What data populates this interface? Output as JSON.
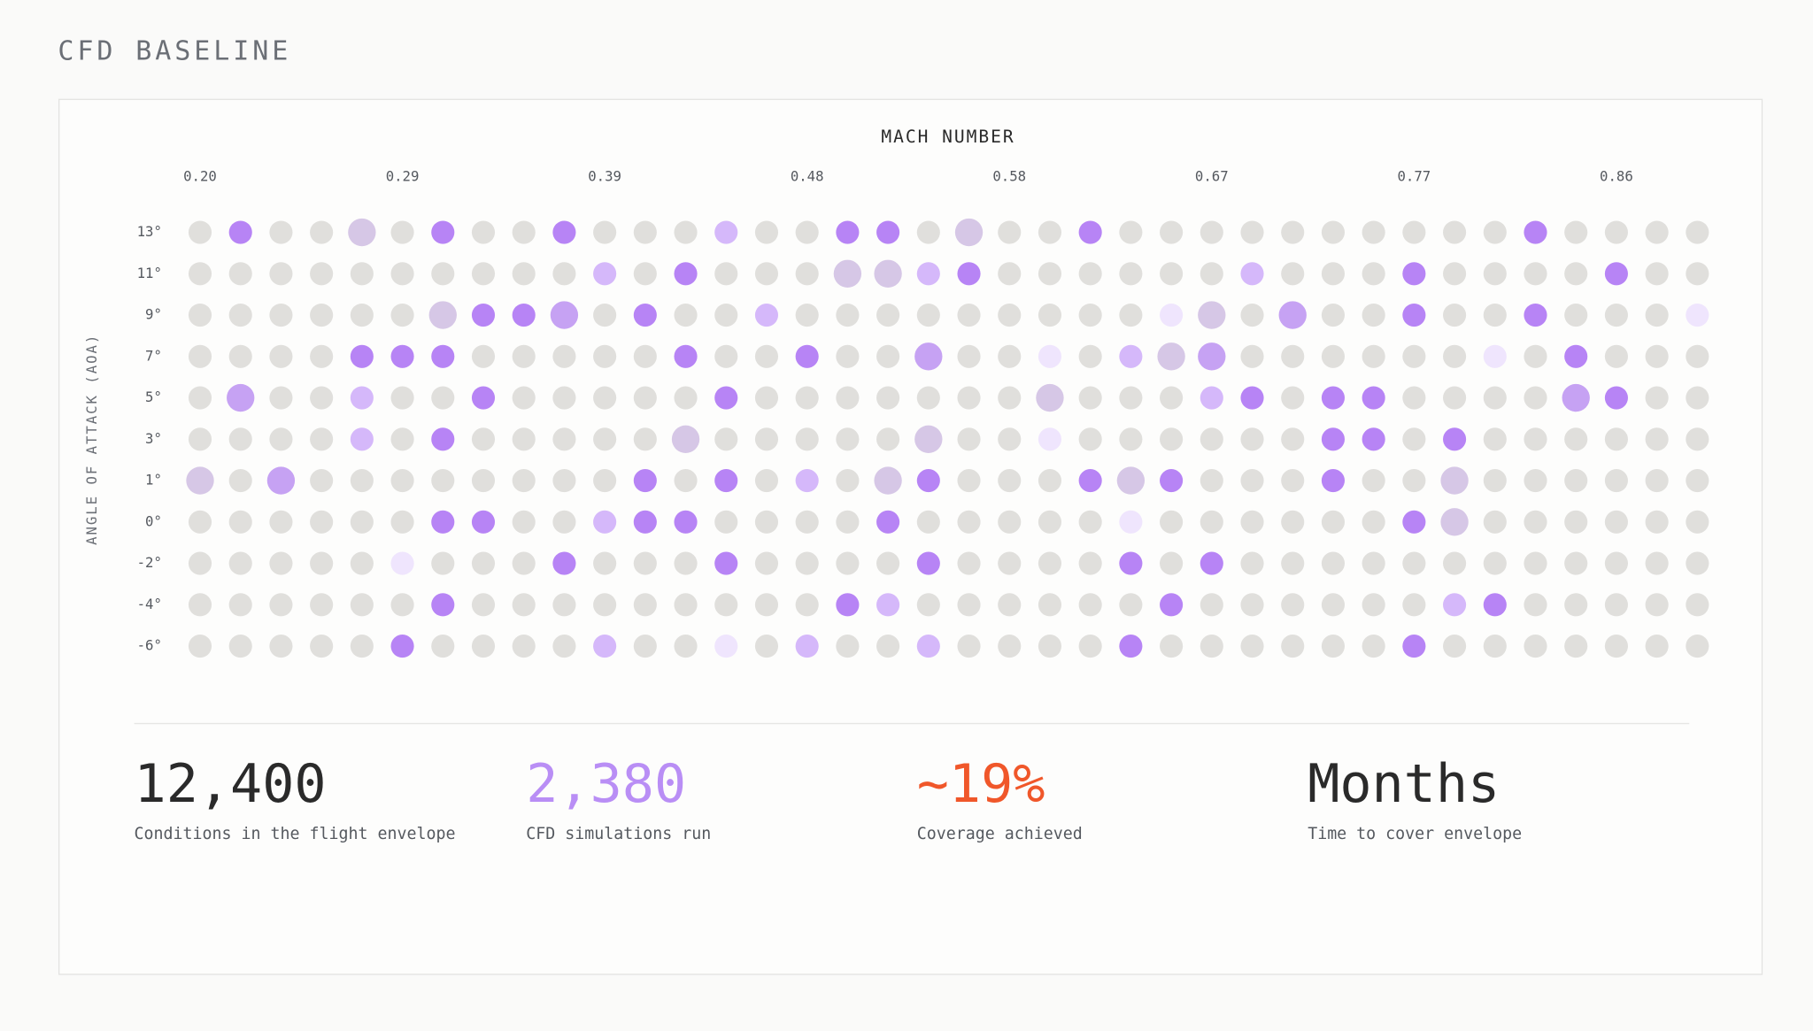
{
  "header": {
    "title": "CFD BASELINE"
  },
  "grid": {
    "x_title": "MACH NUMBER",
    "y_title": "ANGLE OF ATTACK (AOA)",
    "x_labels": [
      "0.20",
      null,
      null,
      null,
      null,
      "0.29",
      null,
      null,
      null,
      null,
      "0.39",
      null,
      null,
      null,
      null,
      "0.48",
      null,
      null,
      null,
      null,
      "0.58",
      null,
      null,
      null,
      null,
      "0.67",
      null,
      null,
      null,
      null,
      "0.77",
      null,
      null,
      null,
      null,
      "0.86",
      null,
      null
    ],
    "y_labels": [
      "13°",
      "11°",
      "9°",
      "7°",
      "5°",
      "3°",
      "1°",
      "0°",
      "-2°",
      "-4°",
      "-6°"
    ],
    "states": [
      {
        "color": "#e0dfdc",
        "r": 10
      },
      {
        "color": "#b784f5",
        "r": 10
      },
      {
        "color": "#d5b8fa",
        "r": 10
      },
      {
        "color": "#efe5fd",
        "r": 10
      },
      {
        "color": "#d6c7e6",
        "r": 12
      },
      {
        "color": "#c6a2f3",
        "r": 12
      }
    ],
    "rows": [
      [
        0,
        1,
        0,
        0,
        4,
        0,
        1,
        0,
        0,
        1,
        0,
        0,
        0,
        2,
        0,
        0,
        1,
        1,
        0,
        4,
        0,
        0,
        1,
        0,
        0,
        0,
        0,
        0,
        0,
        0,
        0,
        0,
        0,
        1,
        0,
        0,
        0,
        0
      ],
      [
        0,
        0,
        0,
        0,
        0,
        0,
        0,
        0,
        0,
        0,
        2,
        0,
        1,
        0,
        0,
        0,
        4,
        4,
        2,
        1,
        0,
        0,
        0,
        0,
        0,
        0,
        2,
        0,
        0,
        0,
        1,
        0,
        0,
        0,
        0,
        1,
        0,
        0
      ],
      [
        0,
        0,
        0,
        0,
        0,
        0,
        4,
        1,
        1,
        5,
        0,
        1,
        0,
        0,
        2,
        0,
        0,
        0,
        0,
        0,
        0,
        0,
        0,
        0,
        3,
        4,
        0,
        5,
        0,
        0,
        1,
        0,
        0,
        1,
        0,
        0,
        0,
        3
      ],
      [
        0,
        0,
        0,
        0,
        1,
        1,
        1,
        0,
        0,
        0,
        0,
        0,
        1,
        0,
        0,
        1,
        0,
        0,
        5,
        0,
        0,
        3,
        0,
        2,
        4,
        5,
        0,
        0,
        0,
        0,
        0,
        0,
        3,
        0,
        1,
        0,
        0,
        0
      ],
      [
        0,
        5,
        0,
        0,
        2,
        0,
        0,
        1,
        0,
        0,
        0,
        0,
        0,
        1,
        0,
        0,
        0,
        0,
        0,
        0,
        0,
        4,
        0,
        0,
        0,
        2,
        1,
        0,
        1,
        1,
        0,
        0,
        0,
        0,
        5,
        1,
        0,
        0
      ],
      [
        0,
        0,
        0,
        0,
        2,
        0,
        1,
        0,
        0,
        0,
        0,
        0,
        4,
        0,
        0,
        0,
        0,
        0,
        4,
        0,
        0,
        3,
        0,
        0,
        0,
        0,
        0,
        0,
        1,
        1,
        0,
        1,
        0,
        0,
        0,
        0,
        0,
        0
      ],
      [
        4,
        0,
        5,
        0,
        0,
        0,
        0,
        0,
        0,
        0,
        0,
        1,
        0,
        1,
        0,
        2,
        0,
        4,
        1,
        0,
        0,
        0,
        1,
        4,
        1,
        0,
        0,
        0,
        1,
        0,
        0,
        4,
        0,
        0,
        0,
        0,
        0,
        0
      ],
      [
        0,
        0,
        0,
        0,
        0,
        0,
        1,
        1,
        0,
        0,
        2,
        1,
        1,
        0,
        0,
        0,
        0,
        1,
        0,
        0,
        0,
        0,
        0,
        3,
        0,
        0,
        0,
        0,
        0,
        0,
        1,
        4,
        0,
        0,
        0,
        0,
        0,
        0
      ],
      [
        0,
        0,
        0,
        0,
        0,
        3,
        0,
        0,
        0,
        1,
        0,
        0,
        0,
        1,
        0,
        0,
        0,
        0,
        1,
        0,
        0,
        0,
        0,
        1,
        0,
        1,
        0,
        0,
        0,
        0,
        0,
        0,
        0,
        0,
        0,
        0,
        0,
        0
      ],
      [
        0,
        0,
        0,
        0,
        0,
        0,
        1,
        0,
        0,
        0,
        0,
        0,
        0,
        0,
        0,
        0,
        1,
        2,
        0,
        0,
        0,
        0,
        0,
        0,
        1,
        0,
        0,
        0,
        0,
        0,
        0,
        2,
        1,
        0,
        0,
        0,
        0,
        0
      ],
      [
        0,
        0,
        0,
        0,
        0,
        1,
        0,
        0,
        0,
        0,
        2,
        0,
        0,
        3,
        0,
        2,
        0,
        0,
        2,
        0,
        0,
        0,
        0,
        1,
        0,
        0,
        0,
        0,
        0,
        0,
        1,
        0,
        0,
        0,
        0,
        0,
        0,
        0
      ]
    ]
  },
  "stats": [
    {
      "value": "12,400",
      "label": "Conditions in the flight envelope",
      "color": "#2a2a2a"
    },
    {
      "value": "2,380",
      "label": "CFD simulations run",
      "color": "#b98ef5"
    },
    {
      "value": "~19%",
      "label": "Coverage achieved",
      "color": "#f0572a"
    },
    {
      "value": "Months",
      "label": "Time to cover envelope",
      "color": "#2a2a2a"
    }
  ]
}
